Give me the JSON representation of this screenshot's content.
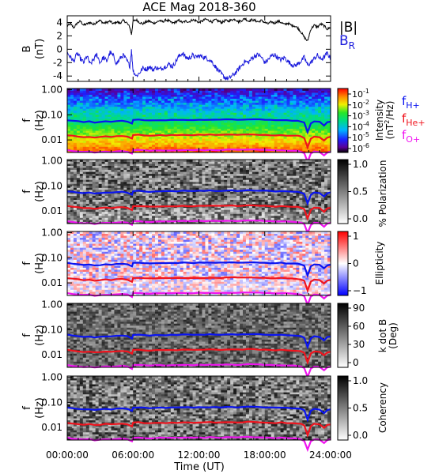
{
  "chart_data": {
    "type": "line",
    "title": "ACE Mag 2018-360",
    "xlabel": "Time (UT)",
    "x_ticks": [
      "00:00:00",
      "06:00:00",
      "12:00:00",
      "18:00:00",
      "24:00:00"
    ],
    "x_range_hours": [
      0,
      24
    ],
    "colors": {
      "b_total": "#000000",
      "b_r": "#1a1adc",
      "f_h": "#0a14f0",
      "f_he": "#f0141e",
      "f_o": "#f014f0"
    },
    "panels": [
      {
        "id": "b_field",
        "ylabel": "B",
        "yunit": "(nT)",
        "ylim": [
          -4.8,
          5.0
        ],
        "y_ticks": [
          "4",
          "2",
          "0",
          "-2",
          "-4"
        ],
        "y_tick_values": [
          4,
          2,
          0,
          -2,
          -4
        ],
        "legend": [
          "|B|",
          "BR"
        ],
        "legend_main": "B",
        "legend_sub": "R",
        "series": [
          {
            "name": "|B|",
            "x": [
              0,
              0.3,
              0.6,
              0.9,
              1.2,
              1.5,
              1.8,
              2.1,
              2.4,
              2.7,
              3,
              3.3,
              3.6,
              3.9,
              4.2,
              4.5,
              4.8,
              5.1,
              5.4,
              5.7,
              5.85,
              6,
              6.3,
              6.6,
              6.9,
              7.2,
              7.5,
              7.8,
              8.1,
              8.4,
              8.7,
              9,
              9.3,
              9.6,
              9.9,
              10.2,
              10.5,
              10.8,
              11.1,
              11.4,
              11.7,
              12,
              12.3,
              12.6,
              12.9,
              13.2,
              13.5,
              13.8,
              14.1,
              14.4,
              14.7,
              15,
              15.3,
              15.6,
              15.9,
              16.2,
              16.5,
              16.8,
              17.1,
              17.4,
              17.7,
              18,
              18.3,
              18.6,
              18.9,
              19.2,
              19.5,
              19.8,
              20.1,
              20.4,
              20.7,
              21,
              21.3,
              21.6,
              21.9,
              22.2,
              22.5,
              22.8,
              23.1,
              23.4,
              23.7,
              24
            ],
            "y": [
              3.5,
              3.8,
              3.2,
              3.9,
              4.2,
              3.6,
              3.8,
              4.0,
              3.7,
              4.1,
              4.3,
              3.9,
              4.0,
              4.2,
              3.8,
              4.1,
              3.9,
              4.3,
              4.0,
              3.3,
              2.2,
              4.2,
              4.4,
              4.0,
              3.8,
              4.1,
              4.2,
              3.9,
              4.0,
              4.3,
              4.1,
              4.4,
              4.2,
              3.9,
              4.1,
              4.3,
              4.0,
              4.2,
              4.1,
              4.4,
              4.3,
              4.0,
              4.2,
              4.5,
              4.3,
              4.1,
              4.4,
              4.2,
              4.0,
              4.3,
              4.2,
              4.4,
              4.5,
              4.1,
              4.3,
              4.6,
              4.2,
              4.4,
              4.3,
              4.1,
              4.3,
              4.0,
              3.8,
              4.1,
              3.9,
              4.2,
              4.0,
              3.7,
              3.9,
              3.6,
              3.5,
              3.2,
              2.6,
              1.8,
              1.2,
              3.0,
              3.6,
              3.3,
              3.8,
              3.5,
              3.0,
              3.3
            ]
          },
          {
            "name": "BR",
            "x": [
              0,
              0.3,
              0.6,
              0.9,
              1.2,
              1.5,
              1.8,
              2.1,
              2.4,
              2.7,
              3,
              3.3,
              3.6,
              3.9,
              4.2,
              4.5,
              4.8,
              5.1,
              5.4,
              5.7,
              5.85,
              6,
              6.3,
              6.6,
              6.9,
              7.2,
              7.5,
              7.8,
              8.1,
              8.4,
              8.7,
              9,
              9.3,
              9.6,
              9.9,
              10.2,
              10.5,
              10.8,
              11.1,
              11.4,
              11.7,
              12,
              12.3,
              12.6,
              12.9,
              13.2,
              13.5,
              13.8,
              14.1,
              14.4,
              14.7,
              15,
              15.3,
              15.6,
              15.9,
              16.2,
              16.5,
              16.8,
              17.1,
              17.4,
              17.7,
              18,
              18.3,
              18.6,
              18.9,
              19.2,
              19.5,
              19.8,
              20.1,
              20.4,
              20.7,
              21,
              21.3,
              21.6,
              21.9,
              22.2,
              22.5,
              22.8,
              23.1,
              23.4,
              23.7,
              24
            ],
            "y": [
              -0.5,
              -1.2,
              -1.8,
              -0.6,
              -1.4,
              -2.0,
              -1.0,
              -2.3,
              -1.5,
              -0.8,
              -2.0,
              -1.2,
              -1.8,
              -0.5,
              -1.0,
              -2.2,
              -1.4,
              -0.9,
              -1.6,
              -2.5,
              -0.2,
              -3.2,
              -4.0,
              -3.5,
              -2.8,
              -3.0,
              -2.6,
              -3.1,
              -2.7,
              -3.0,
              -2.8,
              -2.5,
              -2.2,
              -2.6,
              -1.8,
              -1.0,
              -0.6,
              -1.2,
              -1.4,
              -0.9,
              -1.2,
              -1.0,
              -1.1,
              -1.3,
              -1.5,
              -1.9,
              -2.6,
              -3.2,
              -3.8,
              -4.3,
              -4.4,
              -4.0,
              -3.6,
              -3.0,
              -2.4,
              -1.8,
              -2.0,
              -1.4,
              -1.0,
              -0.8,
              -1.2,
              -2.0,
              -1.6,
              -1.0,
              -0.8,
              -1.3,
              -1.6,
              -1.2,
              -1.8,
              -2.2,
              -2.5,
              -2.2,
              -1.8,
              -1.2,
              -2.4,
              -2.0,
              -1.4,
              -0.9,
              -1.5,
              -1.2,
              -0.6,
              -1.4
            ]
          }
        ]
      },
      {
        "id": "intensity",
        "ylabel": "f",
        "yunit": "(Hz)",
        "ylim_log10": [
          -2.5,
          0.05
        ],
        "y_ticks": [
          "1.00",
          "0.10",
          "0.01"
        ],
        "y_tick_values": [
          1,
          0.1,
          0.01
        ],
        "colorbar": {
          "title": "Intensity",
          "unit_main": "(nT",
          "unit_sup": "2",
          "unit_tail": "/Hz)",
          "scale": "rainbow",
          "exponents": [
            "-1",
            "-2",
            "-3",
            "-4",
            "-5",
            "-6"
          ],
          "tick_mantissa": "10"
        },
        "legend": {
          "f_h_main": "f",
          "f_h_sub": "H+",
          "f_he_main": "f",
          "f_he_sub": "He+",
          "f_o_main": "f",
          "f_o_sub": "O+"
        }
      },
      {
        "id": "polarization",
        "ylabel": "f",
        "yunit": "(Hz)",
        "ylim_log10": [
          -2.5,
          0.05
        ],
        "y_ticks": [
          "1.00",
          "0.10",
          "0.01"
        ],
        "y_tick_values": [
          1,
          0.1,
          0.01
        ],
        "colorbar": {
          "title": "% Polarization",
          "scale": "gray",
          "range": [
            0,
            1
          ],
          "ticks": [
            "1.0",
            "0.5",
            "0.0"
          ]
        }
      },
      {
        "id": "ellipticity",
        "ylabel": "f",
        "yunit": "(Hz)",
        "ylim_log10": [
          -2.5,
          0.05
        ],
        "y_ticks": [
          "1.00",
          "0.10",
          "0.01"
        ],
        "y_tick_values": [
          1,
          0.1,
          0.01
        ],
        "colorbar": {
          "title": "Ellipticity",
          "scale": "diverging",
          "range": [
            -1,
            1
          ],
          "ticks": [
            "1",
            "0",
            "−1"
          ]
        }
      },
      {
        "id": "kdotb",
        "ylabel": "f",
        "yunit": "(Hz)",
        "ylim_log10": [
          -2.5,
          0.05
        ],
        "y_ticks": [
          "1.00",
          "0.10",
          "0.01"
        ],
        "y_tick_values": [
          1,
          0.1,
          0.01
        ],
        "colorbar": {
          "title": "k dot B",
          "unit": "(Deg)",
          "scale": "gray",
          "range": [
            0,
            90
          ],
          "ticks": [
            "90",
            "60",
            "30",
            "0"
          ]
        }
      },
      {
        "id": "coherency",
        "ylabel": "f",
        "yunit": "(Hz)",
        "ylim_log10": [
          -2.5,
          0.05
        ],
        "y_ticks": [
          "1.00",
          "0.10",
          "0.01"
        ],
        "y_tick_values": [
          1,
          0.1,
          0.01
        ],
        "colorbar": {
          "title": "Coherency",
          "scale": "gray",
          "range": [
            0,
            1
          ],
          "ticks": [
            "1.0",
            "0.5",
            "0.0"
          ]
        }
      }
    ],
    "gyrofrequencies": {
      "x": [
        0,
        0.5,
        1,
        1.5,
        2,
        2.5,
        3,
        3.5,
        4,
        4.5,
        5,
        5.5,
        5.9,
        6,
        6.5,
        7,
        7.5,
        8,
        8.5,
        9,
        9.5,
        10,
        10.5,
        11,
        11.5,
        12,
        12.5,
        13,
        13.5,
        14,
        14.5,
        15,
        15.5,
        16,
        16.5,
        17,
        17.5,
        18,
        18.5,
        19,
        19.5,
        20,
        20.5,
        21,
        21.3,
        21.6,
        21.9,
        22.2,
        22.5,
        23,
        23.4,
        23.7,
        24
      ],
      "f_h": [
        0.062,
        0.058,
        0.055,
        0.052,
        0.054,
        0.05,
        0.052,
        0.055,
        0.053,
        0.056,
        0.058,
        0.054,
        0.045,
        0.062,
        0.064,
        0.061,
        0.059,
        0.06,
        0.062,
        0.061,
        0.063,
        0.062,
        0.064,
        0.063,
        0.062,
        0.064,
        0.063,
        0.065,
        0.064,
        0.063,
        0.065,
        0.066,
        0.064,
        0.065,
        0.067,
        0.066,
        0.065,
        0.064,
        0.062,
        0.061,
        0.063,
        0.06,
        0.059,
        0.058,
        0.055,
        0.048,
        0.02,
        0.045,
        0.055,
        0.052,
        0.038,
        0.05,
        0.054
      ],
      "f_he": [
        0.0155,
        0.0145,
        0.0138,
        0.013,
        0.0135,
        0.0125,
        0.013,
        0.0138,
        0.0132,
        0.014,
        0.0145,
        0.0135,
        0.0112,
        0.0155,
        0.016,
        0.0152,
        0.0148,
        0.015,
        0.0155,
        0.0152,
        0.0158,
        0.0155,
        0.016,
        0.0158,
        0.0155,
        0.016,
        0.0158,
        0.0162,
        0.016,
        0.0158,
        0.0162,
        0.0165,
        0.016,
        0.0162,
        0.0168,
        0.0165,
        0.0162,
        0.016,
        0.0155,
        0.0152,
        0.0158,
        0.015,
        0.0148,
        0.0145,
        0.0138,
        0.012,
        0.005,
        0.0112,
        0.0138,
        0.013,
        0.0095,
        0.0125,
        0.0135
      ],
      "f_o": [
        0.0039,
        0.0036,
        0.0034,
        0.0033,
        0.0034,
        0.0031,
        0.0033,
        0.0034,
        0.0033,
        0.0035,
        0.0036,
        0.0034,
        0.0028,
        0.0039,
        0.004,
        0.0038,
        0.0037,
        0.0038,
        0.0039,
        0.0038,
        0.0039,
        0.0039,
        0.004,
        0.0039,
        0.0039,
        0.004,
        0.0039,
        0.0041,
        0.004,
        0.0039,
        0.0041,
        0.0041,
        0.004,
        0.0041,
        0.0042,
        0.0041,
        0.0041,
        0.004,
        0.0039,
        0.0038,
        0.0039,
        0.0038,
        0.0037,
        0.0036,
        0.0034,
        0.003,
        0.0013,
        0.0028,
        0.0034,
        0.0033,
        0.0024,
        0.0031,
        0.0034
      ]
    },
    "grid": false
  }
}
